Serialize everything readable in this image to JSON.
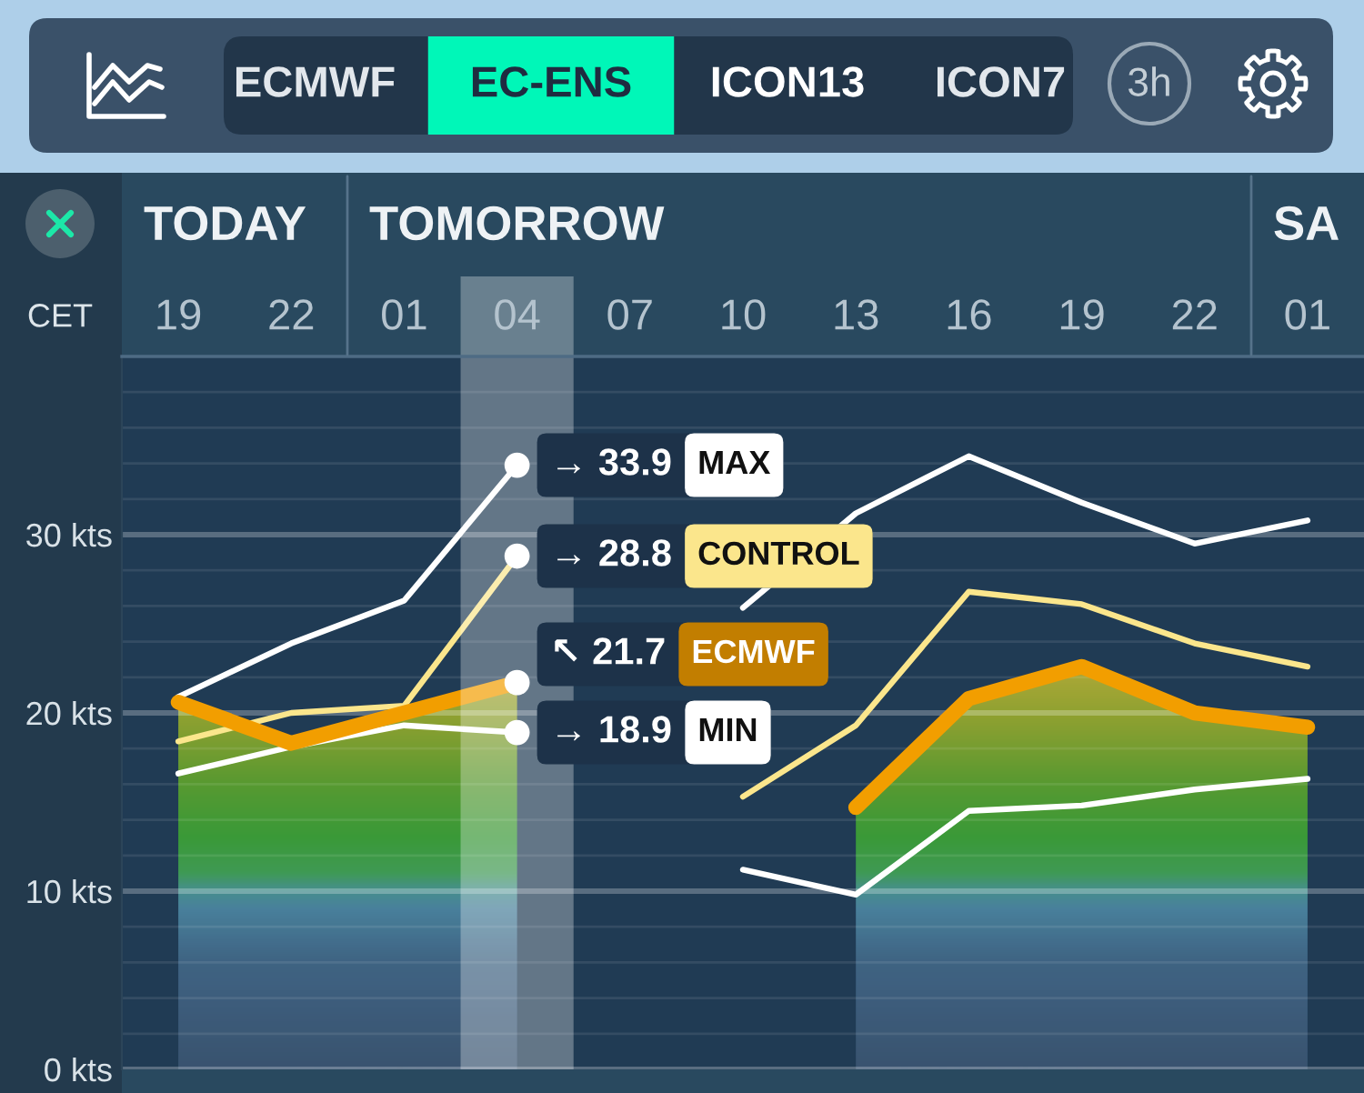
{
  "chart_data": {
    "type": "line",
    "title": "EC-ENS",
    "xlabel": "CET",
    "annotations": [
      "ECMWF",
      "ICON13",
      "ICON7",
      "3h",
      "TODAY",
      "TOMORROW",
      "SA"
    ],
    "categories": [
      "19",
      "22",
      "01",
      "04",
      "07",
      "10",
      "13",
      "16",
      "19",
      "22",
      "01"
    ],
    "series": [
      {
        "name": "MAX",
        "color": "#ffffff",
        "values": [
          20.9,
          23.9,
          26.3,
          33.9,
          null,
          25.9,
          31.2,
          34.4,
          31.8,
          29.5,
          30.8
        ],
        "value_labels": [
          null,
          null,
          null,
          "→ 33.9",
          null,
          null,
          null,
          null,
          null,
          null,
          null
        ]
      },
      {
        "name": "CONTROL",
        "color": "#fbe68c",
        "values": [
          18.4,
          20.0,
          20.4,
          28.8,
          null,
          15.3,
          19.3,
          26.8,
          26.1,
          23.9,
          22.6
        ],
        "value_labels": [
          null,
          null,
          null,
          "→ 28.8",
          null,
          null,
          null,
          null,
          null,
          null,
          null
        ]
      },
      {
        "name": "ECMWF",
        "type": "area",
        "color": "#f29e00",
        "values": [
          20.6,
          18.3,
          20.0,
          21.7,
          null,
          null,
          14.7,
          20.8,
          22.6,
          20.0,
          19.2
        ],
        "value_labels": [
          null,
          null,
          null,
          "↖ 21.7",
          null,
          null,
          null,
          null,
          null,
          null,
          null
        ]
      },
      {
        "name": "MIN",
        "color": "#ffffff",
        "values": [
          16.6,
          18.1,
          19.3,
          18.9,
          null,
          11.2,
          9.8,
          14.5,
          14.8,
          15.7,
          16.3
        ],
        "value_labels": [
          null,
          null,
          null,
          "→ 18.9",
          null,
          null,
          null,
          null,
          null,
          null,
          null
        ]
      }
    ],
    "ylim": [
      0,
      40
    ],
    "yticks": [
      {
        "value": 0,
        "label": "0 kts"
      },
      {
        "value": 2,
        "label": null
      },
      {
        "value": 4,
        "label": null
      },
      {
        "value": 6,
        "label": null
      },
      {
        "value": 8,
        "label": null
      },
      {
        "value": 10,
        "label": "10 kts"
      },
      {
        "value": 12,
        "label": null
      },
      {
        "value": 14,
        "label": null
      },
      {
        "value": 16,
        "label": null
      },
      {
        "value": 18,
        "label": null
      },
      {
        "value": 20,
        "label": "20 kts"
      },
      {
        "value": 22,
        "label": null
      },
      {
        "value": 24,
        "label": null
      },
      {
        "value": 26,
        "label": null
      },
      {
        "value": 28,
        "label": null
      },
      {
        "value": 30,
        "label": "30 kts"
      },
      {
        "value": 32,
        "label": null
      },
      {
        "value": 34,
        "label": null
      },
      {
        "value": 36,
        "label": null
      },
      {
        "value": 38,
        "label": null
      }
    ],
    "bands": [
      {
        "axis": "x",
        "from": "04",
        "to": "04",
        "color": "#ffffff"
      }
    ],
    "grid": "y",
    "marker": "none",
    "line_style": "solid"
  }
}
